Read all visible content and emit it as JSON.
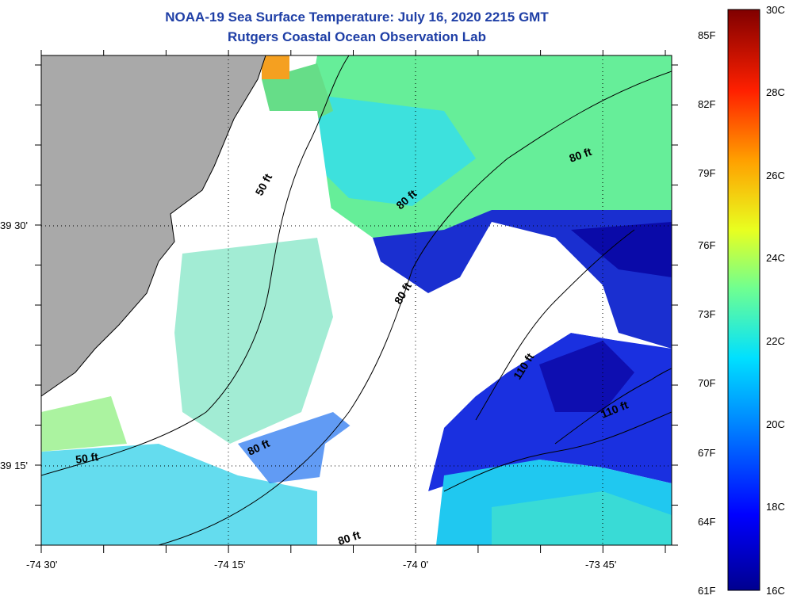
{
  "header": {
    "title": "NOAA-19 Sea Surface Temperature:  July 16, 2020 2215 GMT",
    "subtitle": "Rutgers Coastal Ocean Observation Lab"
  },
  "axes": {
    "x_ticks": [
      "-74 30'",
      "-74 15'",
      "-74 0'",
      "-73 45'"
    ],
    "y_ticks": [
      "39 30'",
      "39 15'"
    ]
  },
  "colorbar": {
    "fahrenheit": [
      "85F",
      "82F",
      "79F",
      "76F",
      "73F",
      "70F",
      "67F",
      "64F",
      "61F"
    ],
    "celsius": [
      "30C",
      "28C",
      "26C",
      "24C",
      "22C",
      "20C",
      "18C",
      "16C"
    ],
    "range_c": [
      16,
      30
    ]
  },
  "contours": {
    "labels": [
      "50 ft",
      "80 ft",
      "80 ft",
      "80 ft",
      "110 ft",
      "110 ft",
      "80 ft",
      "80 ft",
      "50 ft"
    ]
  },
  "colors": {
    "land": "#a9a9a9",
    "cloud": "#ffffff",
    "title": "#1f3fa6"
  }
}
